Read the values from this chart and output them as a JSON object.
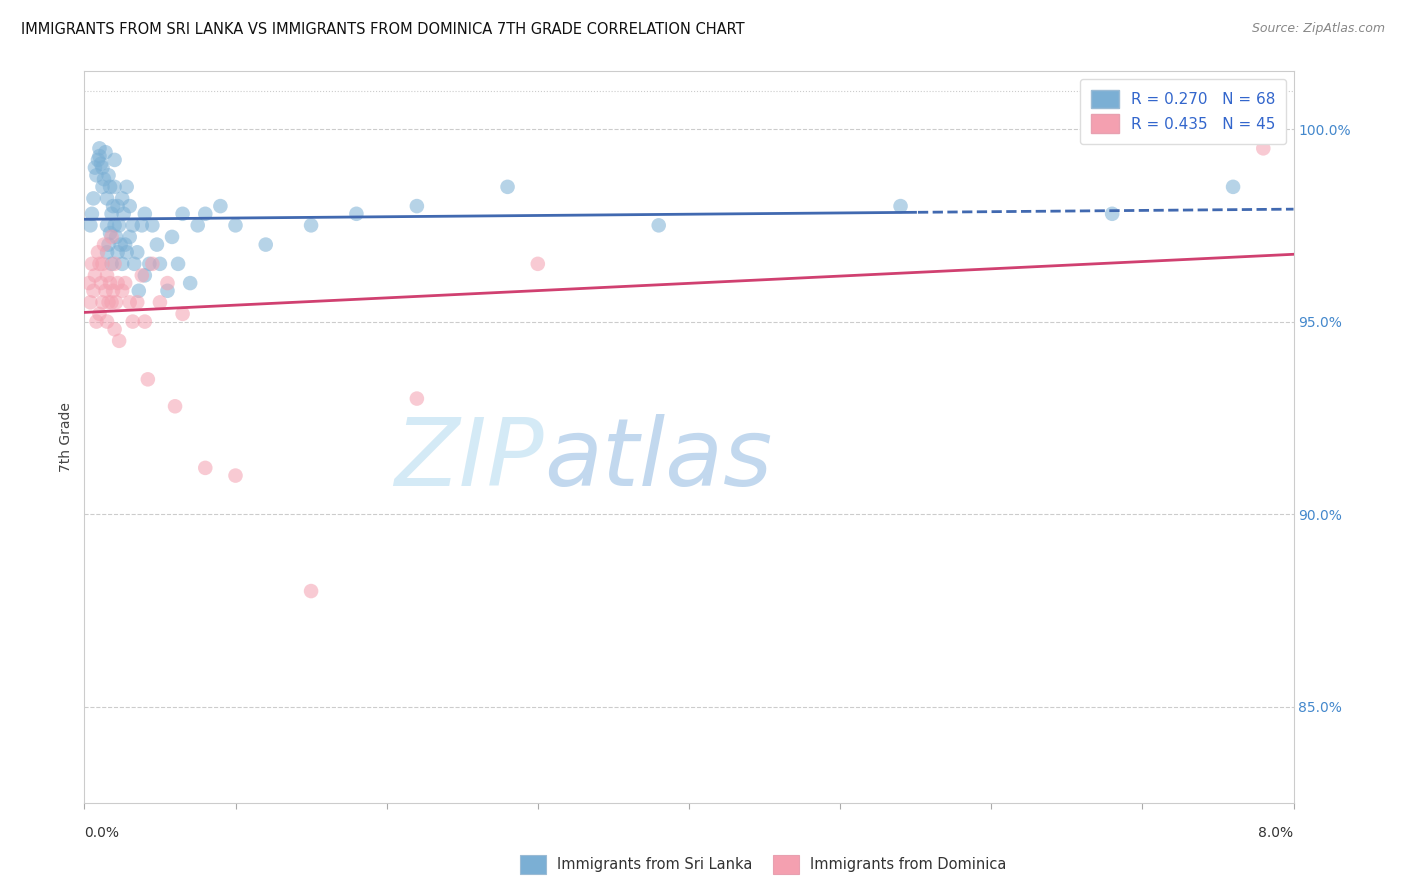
{
  "title": "IMMIGRANTS FROM SRI LANKA VS IMMIGRANTS FROM DOMINICA 7TH GRADE CORRELATION CHART",
  "source": "Source: ZipAtlas.com",
  "ylabel": "7th Grade",
  "r_sri_lanka": 0.27,
  "n_sri_lanka": 68,
  "r_dominica": 0.435,
  "n_dominica": 45,
  "color_sri_lanka": "#7BAFD4",
  "color_dominica": "#F4A0B0",
  "color_line_sri_lanka": "#4169B0",
  "color_line_dominica": "#D04070",
  "legend_label_sri_lanka": "Immigrants from Sri Lanka",
  "legend_label_dominica": "Immigrants from Dominica",
  "xlim": [
    0.0,
    8.0
  ],
  "ylim": [
    82.5,
    101.5
  ],
  "yticks": [
    85.0,
    90.0,
    95.0,
    100.0
  ],
  "ytick_labels": [
    "85.0%",
    "90.0%",
    "95.0%",
    "100.0%"
  ],
  "background_color": "#ffffff",
  "scatter_sri_lanka_x": [
    0.04,
    0.05,
    0.06,
    0.07,
    0.08,
    0.09,
    0.1,
    0.1,
    0.11,
    0.12,
    0.12,
    0.13,
    0.14,
    0.15,
    0.15,
    0.15,
    0.16,
    0.16,
    0.17,
    0.17,
    0.18,
    0.18,
    0.19,
    0.2,
    0.2,
    0.2,
    0.21,
    0.22,
    0.22,
    0.23,
    0.24,
    0.25,
    0.25,
    0.26,
    0.27,
    0.28,
    0.28,
    0.3,
    0.3,
    0.32,
    0.33,
    0.35,
    0.36,
    0.38,
    0.4,
    0.4,
    0.43,
    0.45,
    0.48,
    0.5,
    0.55,
    0.58,
    0.62,
    0.65,
    0.7,
    0.75,
    0.8,
    0.9,
    1.0,
    1.2,
    1.5,
    1.8,
    2.2,
    2.8,
    3.8,
    5.4,
    6.8,
    7.6
  ],
  "scatter_sri_lanka_y": [
    97.5,
    97.8,
    98.2,
    99.0,
    98.8,
    99.2,
    99.3,
    99.5,
    99.1,
    98.5,
    99.0,
    98.7,
    99.4,
    96.8,
    97.5,
    98.2,
    97.0,
    98.8,
    97.3,
    98.5,
    96.5,
    97.8,
    98.0,
    97.5,
    98.5,
    99.2,
    97.2,
    96.8,
    98.0,
    97.5,
    97.0,
    96.5,
    98.2,
    97.8,
    97.0,
    96.8,
    98.5,
    97.2,
    98.0,
    97.5,
    96.5,
    96.8,
    95.8,
    97.5,
    97.8,
    96.2,
    96.5,
    97.5,
    97.0,
    96.5,
    95.8,
    97.2,
    96.5,
    97.8,
    96.0,
    97.5,
    97.8,
    98.0,
    97.5,
    97.0,
    97.5,
    97.8,
    98.0,
    98.5,
    97.5,
    98.0,
    97.8,
    98.5
  ],
  "scatter_dominica_x": [
    0.03,
    0.04,
    0.05,
    0.06,
    0.07,
    0.08,
    0.09,
    0.1,
    0.1,
    0.11,
    0.12,
    0.12,
    0.13,
    0.14,
    0.15,
    0.15,
    0.16,
    0.17,
    0.18,
    0.18,
    0.19,
    0.2,
    0.2,
    0.21,
    0.22,
    0.23,
    0.25,
    0.27,
    0.3,
    0.32,
    0.35,
    0.38,
    0.4,
    0.42,
    0.45,
    0.5,
    0.55,
    0.6,
    0.65,
    0.8,
    1.0,
    1.5,
    2.2,
    3.0,
    7.8
  ],
  "scatter_dominica_y": [
    96.0,
    95.5,
    96.5,
    95.8,
    96.2,
    95.0,
    96.8,
    96.5,
    95.2,
    96.0,
    95.5,
    96.5,
    97.0,
    95.8,
    96.2,
    95.0,
    95.5,
    96.0,
    97.2,
    95.5,
    95.8,
    96.5,
    94.8,
    95.5,
    96.0,
    94.5,
    95.8,
    96.0,
    95.5,
    95.0,
    95.5,
    96.2,
    95.0,
    93.5,
    96.5,
    95.5,
    96.0,
    92.8,
    95.2,
    91.2,
    91.0,
    88.0,
    93.0,
    96.5,
    99.5
  ]
}
